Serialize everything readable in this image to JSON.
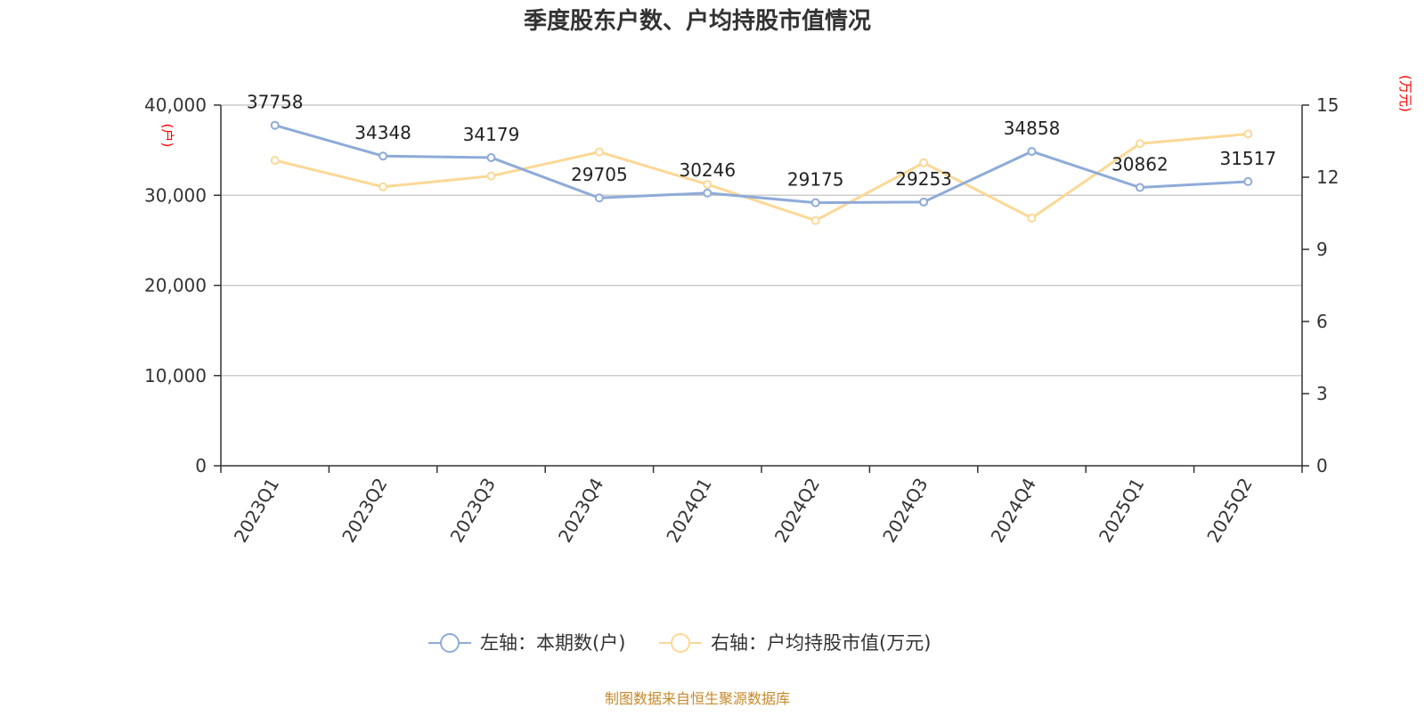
{
  "title": "季度股东户数、户均持股市值情况",
  "left_unit": "(户)",
  "right_unit": "(万元)",
  "source": "制图数据来自恒生聚源数据库",
  "colors": {
    "left_series": "#8eabd8",
    "right_series": "#fcd896",
    "unit": "#ff0000",
    "source": "#c48a2c",
    "grid": "#cccccc",
    "axis": "#333333"
  },
  "chart_data": {
    "type": "line",
    "title": "季度股东户数、户均持股市值情况",
    "categories": [
      "2023Q1",
      "2023Q2",
      "2023Q3",
      "2023Q4",
      "2024Q1",
      "2024Q2",
      "2024Q3",
      "2024Q4",
      "2025Q1",
      "2025Q2"
    ],
    "y_left": {
      "label": "(户)",
      "range": [
        0,
        40000
      ],
      "ticks": [
        0,
        10000,
        20000,
        30000,
        40000
      ],
      "tick_labels": [
        "0",
        "10,000",
        "20,000",
        "30,000",
        "40,000"
      ]
    },
    "y_right": {
      "label": "(万元)",
      "range": [
        0,
        15
      ],
      "ticks": [
        0,
        3,
        6,
        9,
        12,
        15
      ],
      "tick_labels": [
        "0",
        "3",
        "6",
        "9",
        "12",
        "15"
      ]
    },
    "grid": true,
    "legend_position": "bottom-center",
    "series": [
      {
        "name": "左轴：本期数(户)",
        "axis": "left",
        "values": [
          37758,
          34348,
          34179,
          29705,
          30246,
          29175,
          29253,
          34858,
          30862,
          31517
        ],
        "labels": [
          "37758",
          "34348",
          "34179",
          "29705",
          "30246",
          "29175",
          "29253",
          "34858",
          "30862",
          "31517"
        ]
      },
      {
        "name": "右轴：户均持股市值(万元)",
        "axis": "right",
        "values": [
          12.7,
          11.6,
          12.05,
          13.05,
          11.7,
          10.2,
          12.6,
          10.3,
          13.4,
          13.8
        ]
      }
    ]
  }
}
